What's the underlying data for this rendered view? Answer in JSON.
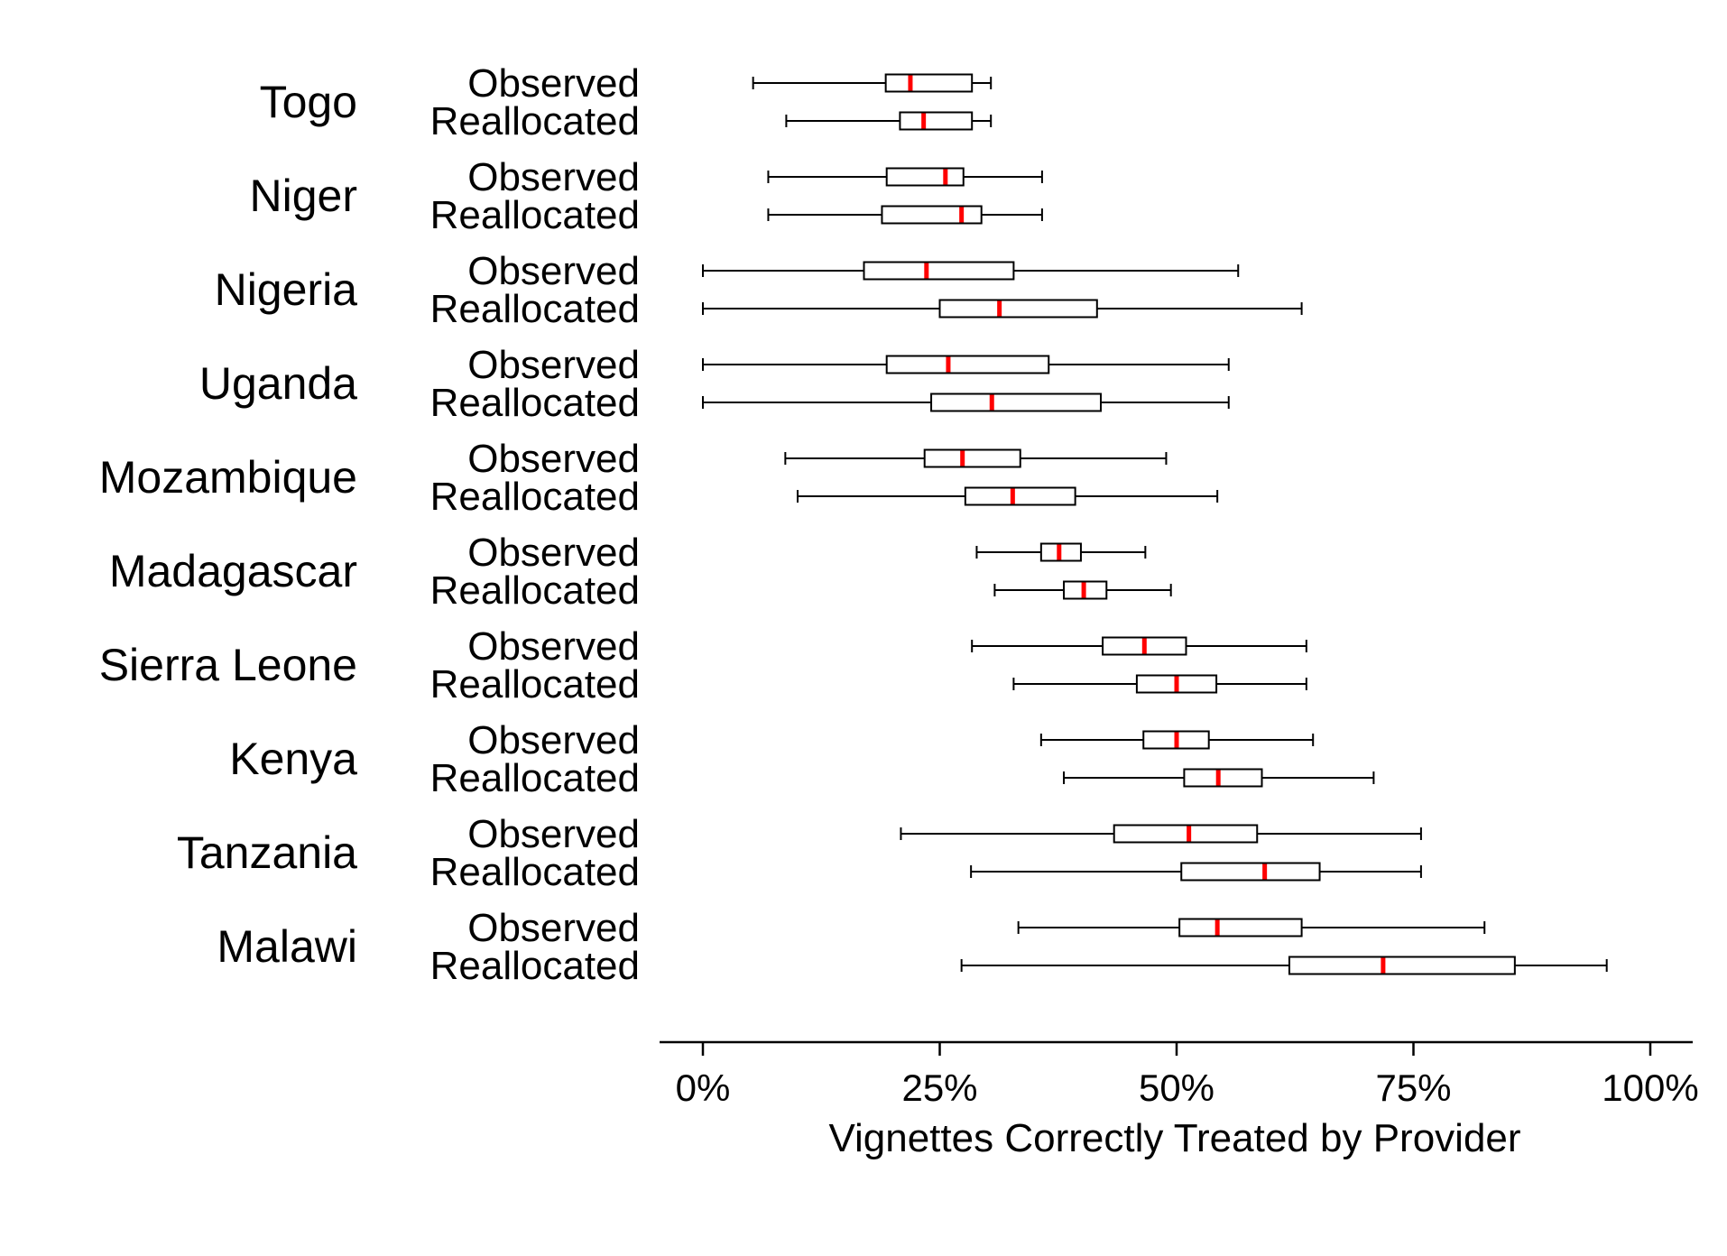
{
  "chart_data": {
    "type": "boxplot",
    "orientation": "horizontal",
    "xlabel": "Vignettes Correctly Treated by Provider",
    "xlim": [
      0,
      100
    ],
    "xticks": [
      {
        "value": 0,
        "label": "0%"
      },
      {
        "value": 25,
        "label": "25%"
      },
      {
        "value": 50,
        "label": "50%"
      },
      {
        "value": 75,
        "label": "75%"
      },
      {
        "value": 100,
        "label": "100%"
      }
    ],
    "colors": {
      "box": "#000000",
      "median": "#ff0000"
    },
    "groups": [
      "Observed",
      "Reallocated"
    ],
    "countries": [
      {
        "name": "Togo",
        "observed": {
          "whisker_low": 5.3,
          "q1": 19.3,
          "median": 21.9,
          "q3": 28.4,
          "whisker_high": 30.4
        },
        "reallocated": {
          "whisker_low": 8.8,
          "q1": 20.8,
          "median": 23.3,
          "q3": 28.4,
          "whisker_high": 30.4
        }
      },
      {
        "name": "Niger",
        "observed": {
          "whisker_low": 6.9,
          "q1": 19.4,
          "median": 25.6,
          "q3": 27.5,
          "whisker_high": 35.8
        },
        "reallocated": {
          "whisker_low": 6.9,
          "q1": 18.9,
          "median": 27.3,
          "q3": 29.4,
          "whisker_high": 35.8
        }
      },
      {
        "name": "Nigeria",
        "observed": {
          "whisker_low": 0,
          "q1": 17.0,
          "median": 23.6,
          "q3": 32.8,
          "whisker_high": 56.5
        },
        "reallocated": {
          "whisker_low": 0,
          "q1": 25.0,
          "median": 31.3,
          "q3": 41.6,
          "whisker_high": 63.2
        }
      },
      {
        "name": "Uganda",
        "observed": {
          "whisker_low": 0,
          "q1": 19.4,
          "median": 25.9,
          "q3": 36.5,
          "whisker_high": 55.5
        },
        "reallocated": {
          "whisker_low": 0,
          "q1": 24.1,
          "median": 30.5,
          "q3": 42.0,
          "whisker_high": 55.5
        }
      },
      {
        "name": "Mozambique",
        "observed": {
          "whisker_low": 8.7,
          "q1": 23.4,
          "median": 27.4,
          "q3": 33.5,
          "whisker_high": 48.9
        },
        "reallocated": {
          "whisker_low": 10.0,
          "q1": 27.7,
          "median": 32.7,
          "q3": 39.3,
          "whisker_high": 54.3
        }
      },
      {
        "name": "Madagascar",
        "observed": {
          "whisker_low": 28.9,
          "q1": 35.7,
          "median": 37.6,
          "q3": 39.9,
          "whisker_high": 46.7
        },
        "reallocated": {
          "whisker_low": 30.8,
          "q1": 38.1,
          "median": 40.2,
          "q3": 42.6,
          "whisker_high": 49.4
        }
      },
      {
        "name": "Sierra Leone",
        "observed": {
          "whisker_low": 28.4,
          "q1": 42.2,
          "median": 46.6,
          "q3": 51.0,
          "whisker_high": 63.7
        },
        "reallocated": {
          "whisker_low": 32.8,
          "q1": 45.8,
          "median": 50.0,
          "q3": 54.2,
          "whisker_high": 63.7
        }
      },
      {
        "name": "Kenya",
        "observed": {
          "whisker_low": 35.7,
          "q1": 46.5,
          "median": 50.0,
          "q3": 53.4,
          "whisker_high": 64.4
        },
        "reallocated": {
          "whisker_low": 38.1,
          "q1": 50.8,
          "median": 54.4,
          "q3": 59.0,
          "whisker_high": 70.8
        }
      },
      {
        "name": "Tanzania",
        "observed": {
          "whisker_low": 20.9,
          "q1": 43.4,
          "median": 51.3,
          "q3": 58.5,
          "whisker_high": 75.8
        },
        "reallocated": {
          "whisker_low": 28.3,
          "q1": 50.5,
          "median": 59.3,
          "q3": 65.1,
          "whisker_high": 75.8
        }
      },
      {
        "name": "Malawi",
        "observed": {
          "whisker_low": 33.3,
          "q1": 50.3,
          "median": 54.3,
          "q3": 63.2,
          "whisker_high": 82.5
        },
        "reallocated": {
          "whisker_low": 27.3,
          "q1": 61.9,
          "median": 71.8,
          "q3": 85.7,
          "whisker_high": 95.4
        }
      }
    ]
  }
}
